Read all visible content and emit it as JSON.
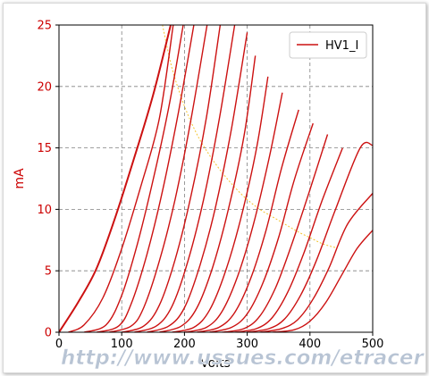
{
  "chart_data": {
    "type": "line",
    "xlabel": "Volts",
    "ylabel": "mA",
    "xlim": [
      0,
      500
    ],
    "ylim": [
      0,
      25
    ],
    "xticks": [
      0,
      100,
      200,
      300,
      400,
      500
    ],
    "yticks": [
      0,
      5,
      10,
      15,
      20,
      25
    ],
    "grid": true,
    "legend": {
      "placement": "top-right",
      "entries": [
        "HV1_I"
      ]
    },
    "colors": {
      "axis_labels": "#cc0000",
      "tick_labels": "#000000",
      "series": "#cc1111",
      "max_dissipation_curve": "#f4c430",
      "grid": "#808080",
      "watermark_fill": "#b8c4d4",
      "watermark_stroke": "#ffffff"
    },
    "curves": [
      {
        "name": "HV1_I",
        "points": [
          [
            0,
            0
          ],
          [
            30,
            2.4
          ],
          [
            60,
            5.2
          ],
          [
            90,
            9.4
          ],
          [
            120,
            14.2
          ],
          [
            150,
            19.3
          ],
          [
            178,
            25
          ]
        ]
      },
      {
        "points": [
          [
            15,
            0
          ],
          [
            40,
            0.6
          ],
          [
            70,
            2.8
          ],
          [
            100,
            6.8
          ],
          [
            130,
            11.8
          ],
          [
            160,
            17.4
          ],
          [
            182,
            25
          ]
        ]
      },
      {
        "points": [
          [
            40,
            0
          ],
          [
            75,
            0.6
          ],
          [
            100,
            3.0
          ],
          [
            125,
            7.2
          ],
          [
            150,
            12.4
          ],
          [
            175,
            18.3
          ],
          [
            198,
            25
          ]
        ]
      },
      {
        "points": [
          [
            60,
            0
          ],
          [
            95,
            0.5
          ],
          [
            115,
            2.3
          ],
          [
            140,
            6.3
          ],
          [
            165,
            11.5
          ],
          [
            190,
            17.8
          ],
          [
            215,
            25
          ]
        ]
      },
      {
        "points": [
          [
            80,
            0
          ],
          [
            115,
            0.5
          ],
          [
            135,
            2.0
          ],
          [
            160,
            5.8
          ],
          [
            185,
            10.8
          ],
          [
            210,
            17.2
          ],
          [
            236,
            25
          ]
        ]
      },
      {
        "points": [
          [
            100,
            0
          ],
          [
            135,
            0.5
          ],
          [
            160,
            2.2
          ],
          [
            185,
            5.9
          ],
          [
            210,
            11.0
          ],
          [
            235,
            17.5
          ],
          [
            257,
            25
          ]
        ]
      },
      {
        "points": [
          [
            120,
            0
          ],
          [
            155,
            0.5
          ],
          [
            180,
            2.1
          ],
          [
            205,
            5.7
          ],
          [
            230,
            10.7
          ],
          [
            255,
            17.2
          ],
          [
            280,
            25
          ]
        ]
      },
      {
        "points": [
          [
            140,
            0
          ],
          [
            175,
            0.5
          ],
          [
            200,
            2.0
          ],
          [
            225,
            5.5
          ],
          [
            250,
            10.3
          ],
          [
            275,
            16.6
          ],
          [
            300,
            24.4
          ]
        ]
      },
      {
        "points": [
          [
            160,
            0
          ],
          [
            195,
            0.5
          ],
          [
            220,
            2.0
          ],
          [
            245,
            5.3
          ],
          [
            270,
            10.0
          ],
          [
            295,
            16.0
          ],
          [
            313,
            22.5
          ]
        ]
      },
      {
        "points": [
          [
            180,
            0
          ],
          [
            215,
            0.4
          ],
          [
            240,
            1.8
          ],
          [
            265,
            4.9
          ],
          [
            290,
            9.3
          ],
          [
            315,
            15.0
          ],
          [
            333,
            20.8
          ]
        ]
      },
      {
        "points": [
          [
            200,
            0
          ],
          [
            235,
            0.4
          ],
          [
            260,
            1.7
          ],
          [
            285,
            4.6
          ],
          [
            310,
            8.8
          ],
          [
            335,
            14.2
          ],
          [
            356,
            19.5
          ]
        ]
      },
      {
        "points": [
          [
            220,
            0
          ],
          [
            255,
            0.4
          ],
          [
            280,
            1.6
          ],
          [
            305,
            4.3
          ],
          [
            330,
            8.3
          ],
          [
            355,
            13.4
          ],
          [
            382,
            18.1
          ]
        ]
      },
      {
        "points": [
          [
            240,
            0
          ],
          [
            275,
            0.4
          ],
          [
            300,
            1.5
          ],
          [
            325,
            4.0
          ],
          [
            350,
            7.7
          ],
          [
            375,
            12.4
          ],
          [
            405,
            17.0
          ]
        ]
      },
      {
        "points": [
          [
            260,
            0
          ],
          [
            295,
            0.3
          ],
          [
            320,
            1.3
          ],
          [
            345,
            3.6
          ],
          [
            370,
            7.0
          ],
          [
            400,
            11.6
          ],
          [
            428,
            16.1
          ]
        ]
      },
      {
        "points": [
          [
            280,
            0
          ],
          [
            315,
            0.3
          ],
          [
            340,
            1.2
          ],
          [
            365,
            3.3
          ],
          [
            390,
            6.4
          ],
          [
            420,
            10.8
          ],
          [
            452,
            15.0
          ]
        ]
      },
      {
        "points": [
          [
            300,
            0
          ],
          [
            335,
            0.3
          ],
          [
            360,
            1.1
          ],
          [
            385,
            3.0
          ],
          [
            410,
            5.8
          ],
          [
            440,
            9.9
          ],
          [
            480,
            15.0
          ],
          [
            500,
            15.2
          ]
        ]
      },
      {
        "points": [
          [
            320,
            0
          ],
          [
            355,
            0.3
          ],
          [
            380,
            1.0
          ],
          [
            405,
            2.7
          ],
          [
            430,
            5.2
          ],
          [
            460,
            8.8
          ],
          [
            500,
            11.3
          ]
        ]
      },
      {
        "points": [
          [
            340,
            0
          ],
          [
            375,
            0.2
          ],
          [
            400,
            0.9
          ],
          [
            425,
            2.4
          ],
          [
            450,
            4.6
          ],
          [
            475,
            6.8
          ],
          [
            500,
            8.3
          ]
        ]
      }
    ],
    "max_dissipation": [
      [
        165,
        25
      ],
      [
        180,
        21.5
      ],
      [
        200,
        18.4
      ],
      [
        220,
        16.1
      ],
      [
        240,
        14.4
      ],
      [
        260,
        13.0
      ],
      [
        280,
        11.8
      ],
      [
        300,
        10.8
      ],
      [
        320,
        10.0
      ],
      [
        340,
        9.4
      ],
      [
        360,
        8.8
      ],
      [
        380,
        8.2
      ],
      [
        400,
        7.7
      ],
      [
        420,
        7.2
      ],
      [
        440,
        6.9
      ]
    ]
  },
  "watermark": {
    "text": "http://www.ussues.com/etracer"
  }
}
